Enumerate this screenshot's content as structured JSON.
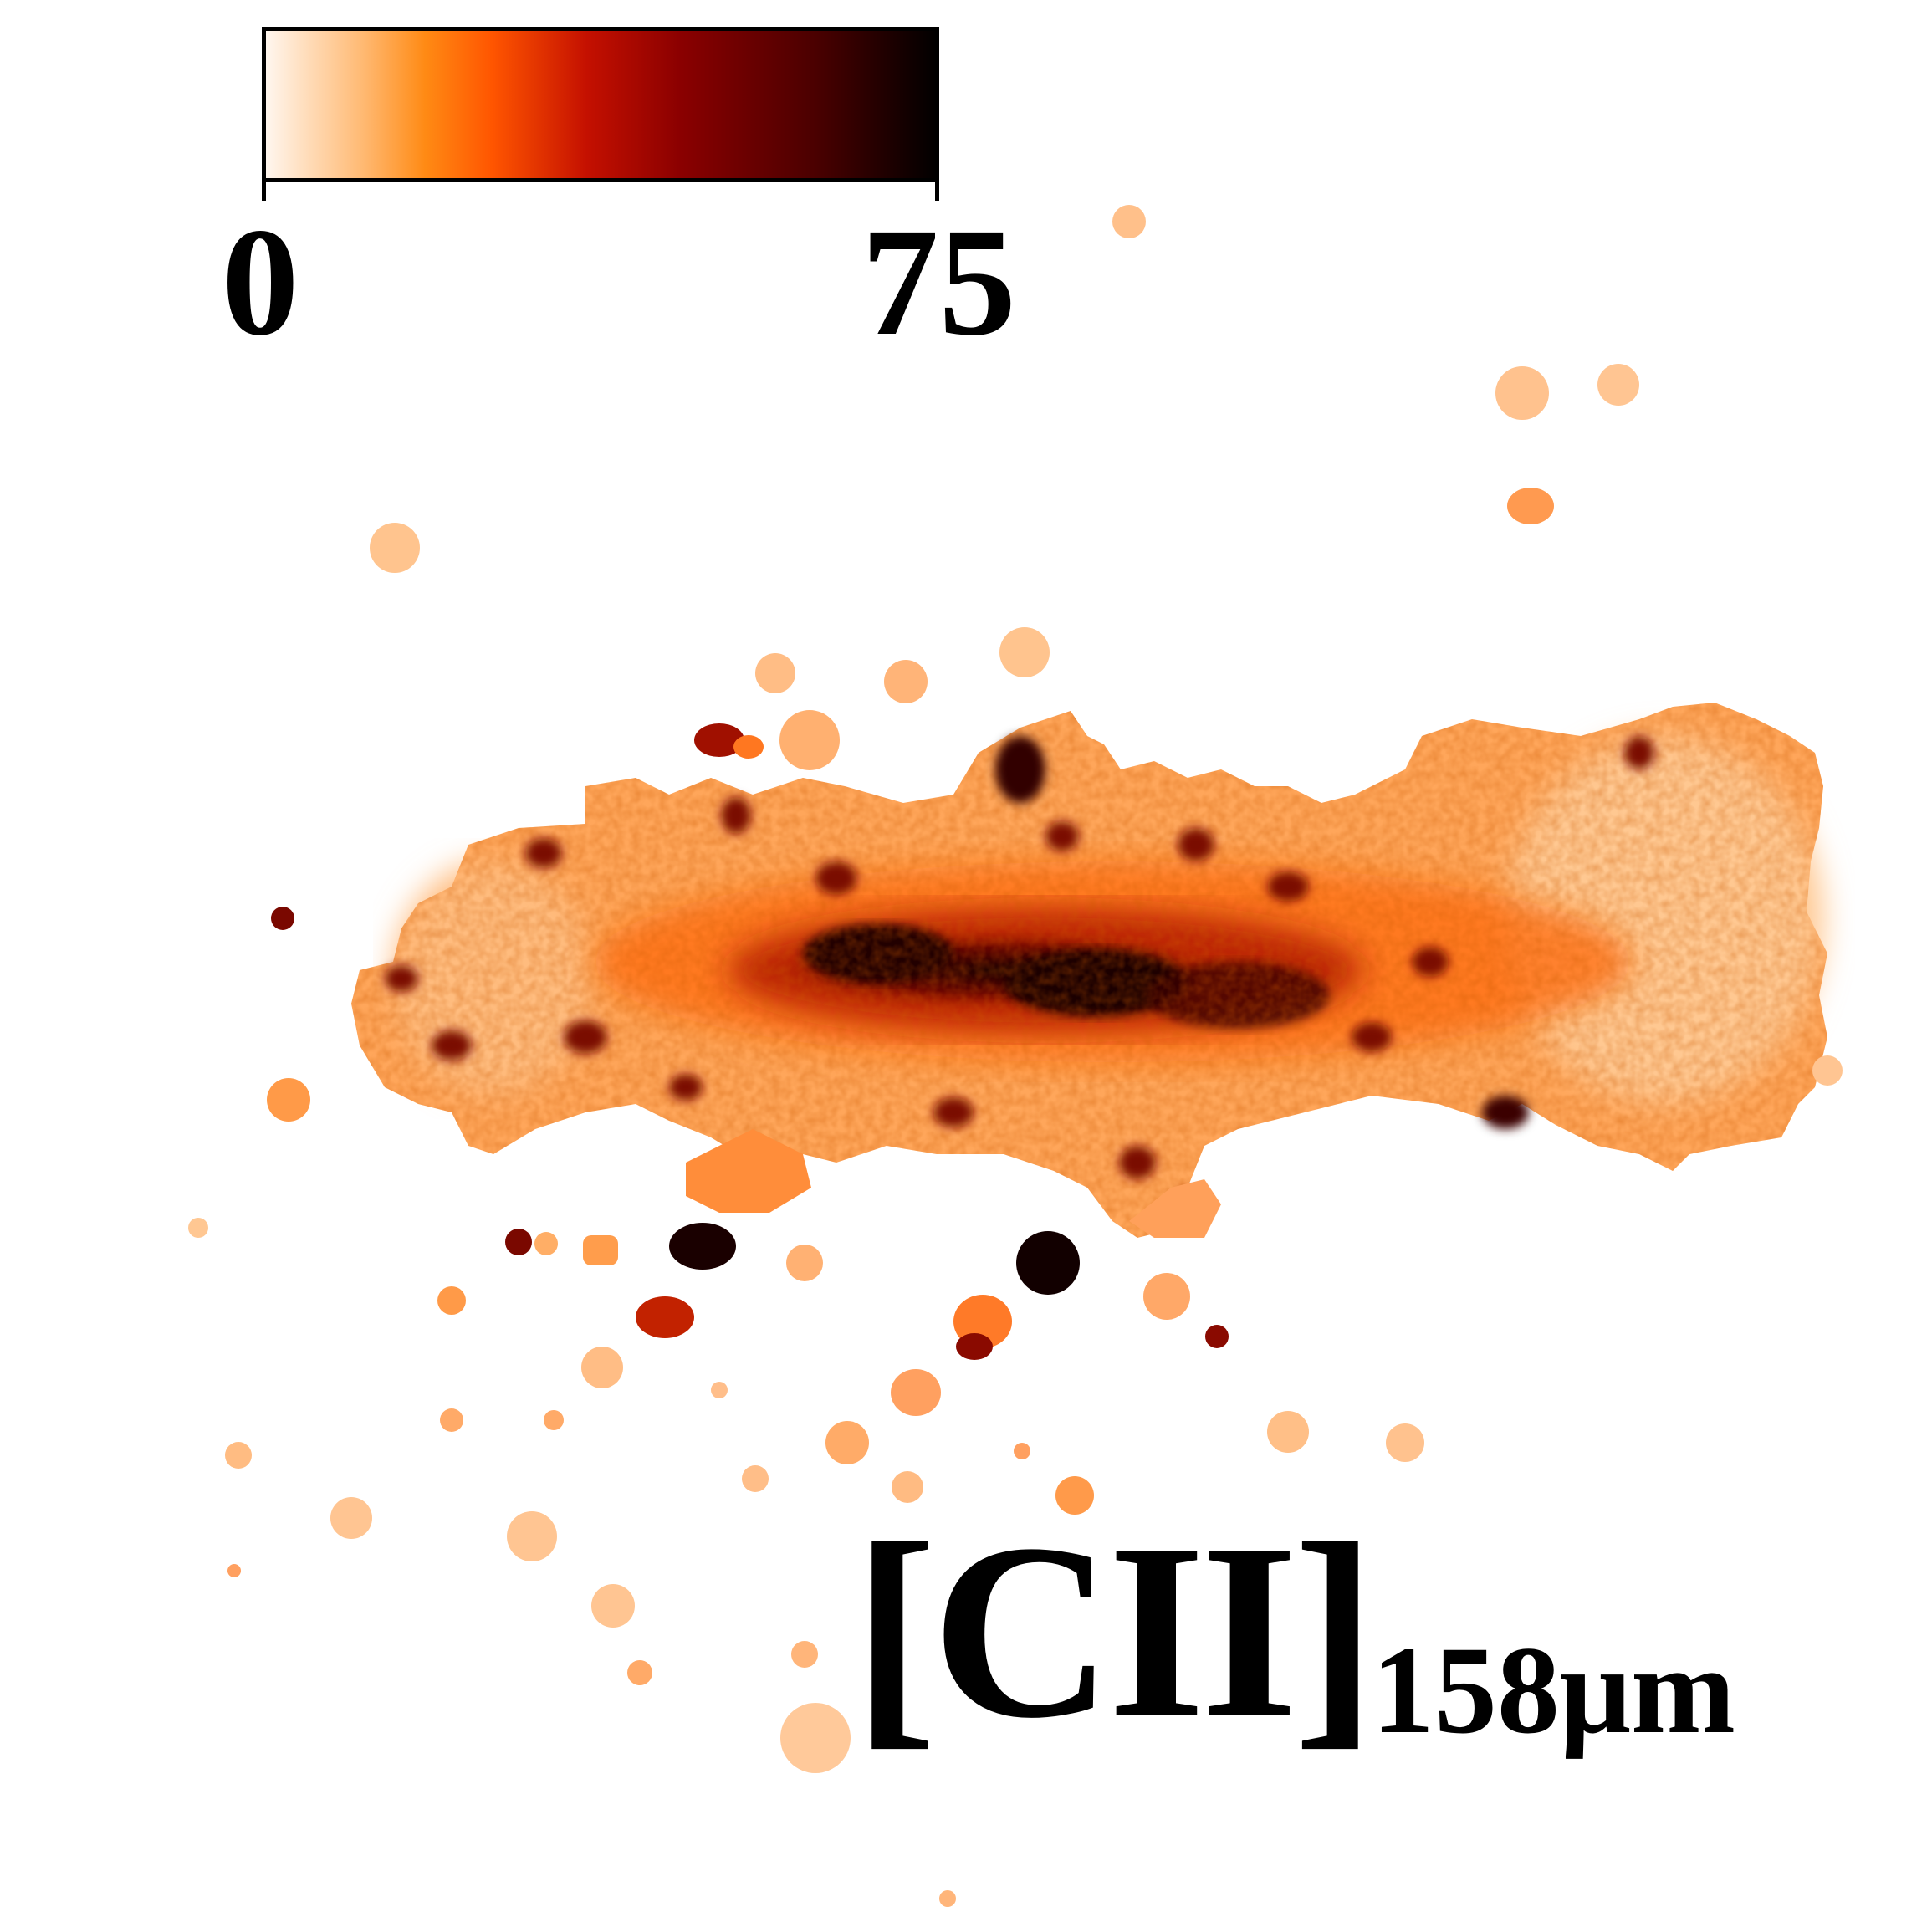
{
  "colorbar": {
    "min_label": "0",
    "max_label": "75",
    "min_value": 0,
    "max_value": 75,
    "colors": [
      "#fff8f2",
      "#ffb870",
      "#ff8a14",
      "#ff5500",
      "#c41000",
      "#8a0000",
      "#4a0000",
      "#000000"
    ]
  },
  "label": {
    "species": "[CII]",
    "wavelength": "158μm"
  }
}
